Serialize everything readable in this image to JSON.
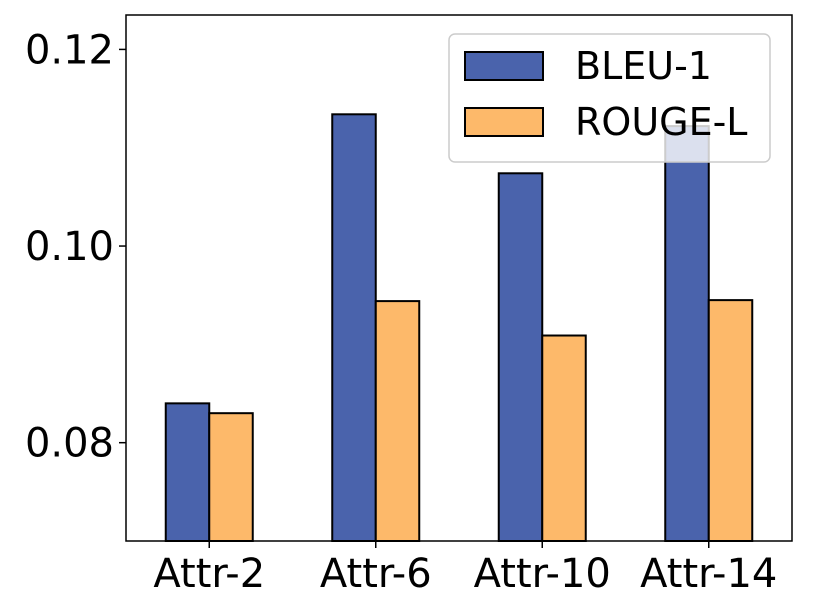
{
  "chart_data": {
    "type": "bar",
    "title": "",
    "xlabel": "",
    "ylabel": "",
    "categories": [
      "Attr-2",
      "Attr-6",
      "Attr-10",
      "Attr-14"
    ],
    "series": [
      {
        "name": "BLEU-1",
        "color": "#4a63ac",
        "values": [
          0.084,
          0.1134,
          0.1074,
          0.1122
        ]
      },
      {
        "name": "ROUGE-L",
        "color": "#fdb96a",
        "values": [
          0.083,
          0.0944,
          0.0909,
          0.0945
        ]
      }
    ],
    "ylim": [
      0.07,
      0.1235
    ],
    "yticks": [
      0.08,
      0.1,
      0.12
    ],
    "ytick_labels": [
      "0.08",
      "0.10",
      "0.12"
    ],
    "grid": false,
    "legend": {
      "position": "top-right",
      "entries": [
        "BLEU-1",
        "ROUGE-L"
      ]
    }
  }
}
